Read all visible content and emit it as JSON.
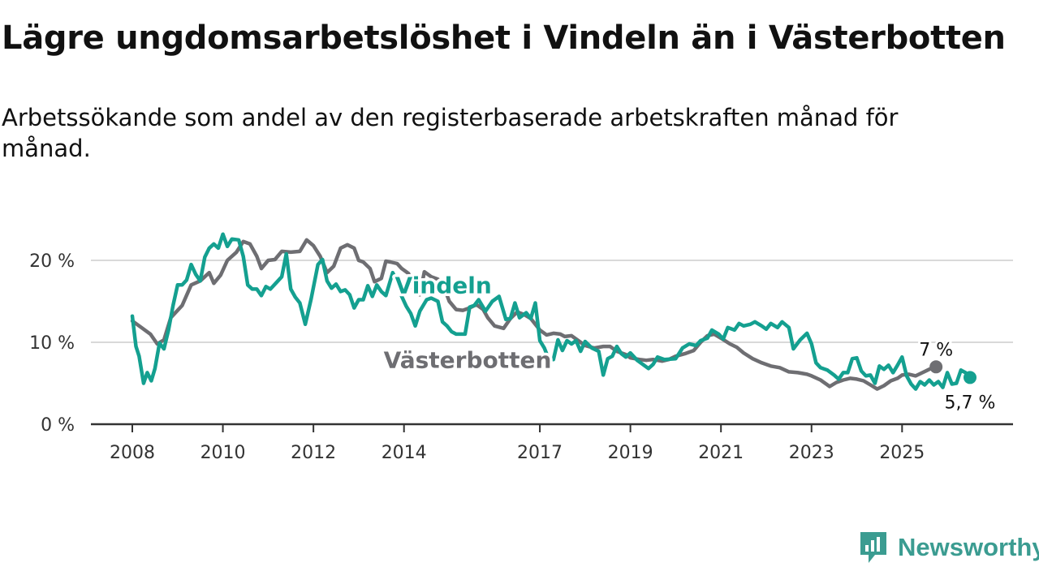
{
  "title": "Lägre ungdomsarbetslöshet i Vindeln än i Västerbotten",
  "subtitle": "Arbetssökande som andel av den registerbaserade arbetskraften månad för månad.",
  "brand": {
    "name": "Newsworthy",
    "icon": "newsworthy-logo-icon",
    "color": "#3b9c91"
  },
  "colors": {
    "vindeln": "#14a090",
    "vasterbotten": "#6e6e72",
    "grid": "#d9d9d9",
    "axis": "#333333"
  },
  "chart_data": {
    "type": "line",
    "title": "Lägre ungdomsarbetslöshet i Vindeln än i Västerbotten",
    "xlabel": "",
    "ylabel": "",
    "xlim": [
      2008,
      2026.5
    ],
    "ylim": [
      0,
      25
    ],
    "y_ticks": [
      {
        "value": 0,
        "label": "0 %"
      },
      {
        "value": 10,
        "label": "10 %"
      },
      {
        "value": 20,
        "label": "20 %"
      }
    ],
    "x_ticks": [
      {
        "value": 2008,
        "label": "2008"
      },
      {
        "value": 2010,
        "label": "2010"
      },
      {
        "value": 2012,
        "label": "2012"
      },
      {
        "value": 2014,
        "label": "2014"
      },
      {
        "value": 2017,
        "label": "2017"
      },
      {
        "value": 2019,
        "label": "2019"
      },
      {
        "value": 2021,
        "label": "2021"
      },
      {
        "value": 2023,
        "label": "2023"
      },
      {
        "value": 2025,
        "label": "2025"
      }
    ],
    "grid": true,
    "series": [
      {
        "name": "Västerbotten",
        "color": "#6e6e72",
        "label_at": [
          2013.55,
          6.9
        ],
        "end_label": "7 %",
        "points": [
          [
            2008.0,
            12.6
          ],
          [
            2008.2,
            11.8
          ],
          [
            2008.4,
            11.0
          ],
          [
            2008.55,
            9.8
          ],
          [
            2008.7,
            10.3
          ],
          [
            2008.85,
            13.0
          ],
          [
            2009.1,
            14.5
          ],
          [
            2009.3,
            17.0
          ],
          [
            2009.5,
            17.5
          ],
          [
            2009.7,
            18.5
          ],
          [
            2009.8,
            17.2
          ],
          [
            2009.95,
            18.2
          ],
          [
            2010.1,
            20.0
          ],
          [
            2010.3,
            21.0
          ],
          [
            2010.45,
            22.3
          ],
          [
            2010.6,
            22.0
          ],
          [
            2010.75,
            20.5
          ],
          [
            2010.85,
            19.0
          ],
          [
            2011.0,
            20.0
          ],
          [
            2011.15,
            20.1
          ],
          [
            2011.3,
            21.1
          ],
          [
            2011.5,
            21.0
          ],
          [
            2011.7,
            21.1
          ],
          [
            2011.85,
            22.5
          ],
          [
            2012.0,
            21.8
          ],
          [
            2012.15,
            20.5
          ],
          [
            2012.3,
            18.5
          ],
          [
            2012.45,
            19.3
          ],
          [
            2012.6,
            21.5
          ],
          [
            2012.75,
            21.9
          ],
          [
            2012.9,
            21.5
          ],
          [
            2013.0,
            20.0
          ],
          [
            2013.1,
            19.8
          ],
          [
            2013.25,
            19.0
          ],
          [
            2013.35,
            17.4
          ],
          [
            2013.5,
            17.8
          ],
          [
            2013.6,
            19.9
          ],
          [
            2013.7,
            19.8
          ],
          [
            2013.85,
            19.6
          ],
          [
            2013.95,
            19.0
          ],
          [
            2014.1,
            18.4
          ],
          [
            2014.2,
            16.5
          ],
          [
            2014.35,
            15.8
          ],
          [
            2014.45,
            18.6
          ],
          [
            2014.6,
            18.0
          ],
          [
            2014.75,
            17.7
          ],
          [
            2014.9,
            16.5
          ],
          [
            2015.0,
            15.0
          ],
          [
            2015.15,
            14.0
          ],
          [
            2015.3,
            13.9
          ],
          [
            2015.45,
            14.2
          ],
          [
            2015.6,
            14.6
          ],
          [
            2015.75,
            14.0
          ],
          [
            2015.85,
            13.0
          ],
          [
            2016.0,
            12.0
          ],
          [
            2016.2,
            11.7
          ],
          [
            2016.35,
            12.9
          ],
          [
            2016.5,
            13.7
          ],
          [
            2016.65,
            13.4
          ],
          [
            2016.8,
            12.9
          ],
          [
            2017.0,
            11.5
          ],
          [
            2017.15,
            10.9
          ],
          [
            2017.3,
            11.1
          ],
          [
            2017.45,
            11.0
          ],
          [
            2017.55,
            10.7
          ],
          [
            2017.7,
            10.8
          ],
          [
            2017.85,
            10.2
          ],
          [
            2018.0,
            9.6
          ],
          [
            2018.2,
            9.3
          ],
          [
            2018.4,
            9.5
          ],
          [
            2018.55,
            9.5
          ],
          [
            2018.7,
            8.9
          ],
          [
            2018.9,
            8.5
          ],
          [
            2019.0,
            8.1
          ],
          [
            2019.2,
            7.9
          ],
          [
            2019.35,
            7.8
          ],
          [
            2019.5,
            7.9
          ],
          [
            2019.7,
            7.7
          ],
          [
            2019.85,
            7.9
          ],
          [
            2020.0,
            8.3
          ],
          [
            2020.2,
            8.6
          ],
          [
            2020.4,
            9.0
          ],
          [
            2020.55,
            10.0
          ],
          [
            2020.7,
            10.8
          ],
          [
            2020.85,
            11.0
          ],
          [
            2021.0,
            10.5
          ],
          [
            2021.2,
            9.8
          ],
          [
            2021.35,
            9.4
          ],
          [
            2021.5,
            8.7
          ],
          [
            2021.7,
            8.0
          ],
          [
            2021.9,
            7.5
          ],
          [
            2022.1,
            7.1
          ],
          [
            2022.3,
            6.9
          ],
          [
            2022.5,
            6.4
          ],
          [
            2022.7,
            6.3
          ],
          [
            2022.9,
            6.1
          ],
          [
            2023.0,
            5.9
          ],
          [
            2023.2,
            5.4
          ],
          [
            2023.4,
            4.6
          ],
          [
            2023.55,
            5.1
          ],
          [
            2023.7,
            5.4
          ],
          [
            2023.85,
            5.6
          ],
          [
            2024.0,
            5.5
          ],
          [
            2024.15,
            5.3
          ],
          [
            2024.3,
            4.8
          ],
          [
            2024.45,
            4.3
          ],
          [
            2024.6,
            4.7
          ],
          [
            2024.75,
            5.3
          ],
          [
            2024.9,
            5.6
          ],
          [
            2025.0,
            6.0
          ],
          [
            2025.15,
            6.1
          ],
          [
            2025.3,
            5.9
          ],
          [
            2025.45,
            6.3
          ],
          [
            2025.6,
            6.7
          ],
          [
            2025.75,
            7.0
          ]
        ]
      },
      {
        "name": "Vindeln",
        "color": "#14a090",
        "label_at": [
          2013.8,
          16.0
        ],
        "end_label": "5,7 %",
        "points": [
          [
            2008.0,
            13.2
          ],
          [
            2008.08,
            9.5
          ],
          [
            2008.15,
            8.3
          ],
          [
            2008.25,
            5.0
          ],
          [
            2008.33,
            6.3
          ],
          [
            2008.42,
            5.3
          ],
          [
            2008.5,
            6.8
          ],
          [
            2008.6,
            9.9
          ],
          [
            2008.7,
            9.2
          ],
          [
            2008.8,
            11.5
          ],
          [
            2008.9,
            14.5
          ],
          [
            2009.0,
            17.0
          ],
          [
            2009.1,
            17.0
          ],
          [
            2009.2,
            17.6
          ],
          [
            2009.3,
            19.5
          ],
          [
            2009.4,
            18.3
          ],
          [
            2009.5,
            17.5
          ],
          [
            2009.6,
            20.4
          ],
          [
            2009.7,
            21.5
          ],
          [
            2009.8,
            22.0
          ],
          [
            2009.9,
            21.5
          ],
          [
            2010.0,
            23.2
          ],
          [
            2010.1,
            21.7
          ],
          [
            2010.2,
            22.6
          ],
          [
            2010.35,
            22.5
          ],
          [
            2010.45,
            20.5
          ],
          [
            2010.55,
            17.0
          ],
          [
            2010.65,
            16.5
          ],
          [
            2010.75,
            16.5
          ],
          [
            2010.85,
            15.7
          ],
          [
            2010.95,
            16.8
          ],
          [
            2011.05,
            16.5
          ],
          [
            2011.2,
            17.4
          ],
          [
            2011.3,
            18.0
          ],
          [
            2011.4,
            20.8
          ],
          [
            2011.5,
            16.5
          ],
          [
            2011.6,
            15.5
          ],
          [
            2011.7,
            14.8
          ],
          [
            2011.82,
            12.2
          ],
          [
            2011.95,
            15.3
          ],
          [
            2012.1,
            19.5
          ],
          [
            2012.2,
            20.1
          ],
          [
            2012.3,
            17.5
          ],
          [
            2012.4,
            16.6
          ],
          [
            2012.5,
            17.1
          ],
          [
            2012.6,
            16.2
          ],
          [
            2012.7,
            16.4
          ],
          [
            2012.8,
            15.8
          ],
          [
            2012.9,
            14.2
          ],
          [
            2013.0,
            15.2
          ],
          [
            2013.1,
            15.2
          ],
          [
            2013.2,
            16.9
          ],
          [
            2013.3,
            15.6
          ],
          [
            2013.4,
            17.0
          ],
          [
            2013.5,
            16.2
          ],
          [
            2013.6,
            15.7
          ],
          [
            2013.75,
            18.5
          ],
          [
            2013.85,
            17.3
          ],
          [
            2013.95,
            15.6
          ],
          [
            2014.05,
            14.4
          ],
          [
            2014.15,
            13.5
          ],
          [
            2014.25,
            12.0
          ],
          [
            2014.35,
            13.8
          ],
          [
            2014.5,
            15.2
          ],
          [
            2014.6,
            15.4
          ],
          [
            2014.75,
            15.0
          ],
          [
            2014.85,
            12.5
          ],
          [
            2014.95,
            12.0
          ],
          [
            2015.05,
            11.3
          ],
          [
            2015.15,
            11.0
          ],
          [
            2015.35,
            11.0
          ],
          [
            2015.45,
            14.3
          ],
          [
            2015.55,
            14.5
          ],
          [
            2015.65,
            15.2
          ],
          [
            2015.8,
            13.8
          ],
          [
            2015.95,
            15.0
          ],
          [
            2016.1,
            15.6
          ],
          [
            2016.25,
            12.8
          ],
          [
            2016.35,
            12.9
          ],
          [
            2016.45,
            14.8
          ],
          [
            2016.55,
            13.0
          ],
          [
            2016.7,
            13.6
          ],
          [
            2016.8,
            12.9
          ],
          [
            2016.9,
            14.8
          ],
          [
            2017.0,
            10.2
          ],
          [
            2017.1,
            9.3
          ],
          [
            2017.2,
            7.9
          ],
          [
            2017.3,
            7.9
          ],
          [
            2017.4,
            10.3
          ],
          [
            2017.5,
            9.0
          ],
          [
            2017.6,
            10.2
          ],
          [
            2017.7,
            9.8
          ],
          [
            2017.8,
            10.2
          ],
          [
            2017.9,
            8.9
          ],
          [
            2018.0,
            10.1
          ],
          [
            2018.15,
            9.3
          ],
          [
            2018.3,
            8.9
          ],
          [
            2018.4,
            6.0
          ],
          [
            2018.5,
            8.0
          ],
          [
            2018.6,
            8.3
          ],
          [
            2018.7,
            9.5
          ],
          [
            2018.8,
            8.6
          ],
          [
            2018.9,
            8.2
          ],
          [
            2019.0,
            8.7
          ],
          [
            2019.15,
            7.8
          ],
          [
            2019.3,
            7.2
          ],
          [
            2019.4,
            6.8
          ],
          [
            2019.5,
            7.3
          ],
          [
            2019.6,
            8.2
          ],
          [
            2019.75,
            7.9
          ],
          [
            2020.0,
            8.0
          ],
          [
            2020.15,
            9.3
          ],
          [
            2020.3,
            9.8
          ],
          [
            2020.45,
            9.6
          ],
          [
            2020.55,
            10.2
          ],
          [
            2020.7,
            10.5
          ],
          [
            2020.8,
            11.5
          ],
          [
            2020.95,
            11.0
          ],
          [
            2021.05,
            10.4
          ],
          [
            2021.15,
            11.8
          ],
          [
            2021.3,
            11.5
          ],
          [
            2021.4,
            12.3
          ],
          [
            2021.5,
            12.0
          ],
          [
            2021.65,
            12.2
          ],
          [
            2021.75,
            12.5
          ],
          [
            2021.9,
            12.0
          ],
          [
            2022.0,
            11.6
          ],
          [
            2022.1,
            12.3
          ],
          [
            2022.25,
            11.8
          ],
          [
            2022.35,
            12.5
          ],
          [
            2022.5,
            11.8
          ],
          [
            2022.6,
            9.2
          ],
          [
            2022.75,
            10.3
          ],
          [
            2022.9,
            11.1
          ],
          [
            2023.0,
            9.8
          ],
          [
            2023.1,
            7.5
          ],
          [
            2023.2,
            6.9
          ],
          [
            2023.35,
            6.6
          ],
          [
            2023.5,
            6.0
          ],
          [
            2023.6,
            5.5
          ],
          [
            2023.7,
            6.3
          ],
          [
            2023.8,
            6.3
          ],
          [
            2023.9,
            8.0
          ],
          [
            2024.0,
            8.1
          ],
          [
            2024.1,
            6.5
          ],
          [
            2024.2,
            5.9
          ],
          [
            2024.3,
            6.0
          ],
          [
            2024.4,
            5.0
          ],
          [
            2024.5,
            7.1
          ],
          [
            2024.6,
            6.7
          ],
          [
            2024.7,
            7.2
          ],
          [
            2024.8,
            6.3
          ],
          [
            2024.9,
            7.2
          ],
          [
            2025.0,
            8.2
          ],
          [
            2025.1,
            5.9
          ],
          [
            2025.2,
            4.9
          ],
          [
            2025.3,
            4.3
          ],
          [
            2025.4,
            5.2
          ],
          [
            2025.5,
            4.8
          ],
          [
            2025.6,
            5.4
          ],
          [
            2025.7,
            4.8
          ],
          [
            2025.8,
            5.2
          ],
          [
            2025.9,
            4.5
          ],
          [
            2026.0,
            6.3
          ],
          [
            2026.1,
            4.9
          ],
          [
            2026.2,
            5.0
          ],
          [
            2026.3,
            6.6
          ],
          [
            2026.4,
            6.3
          ],
          [
            2026.5,
            5.7
          ]
        ]
      }
    ]
  }
}
